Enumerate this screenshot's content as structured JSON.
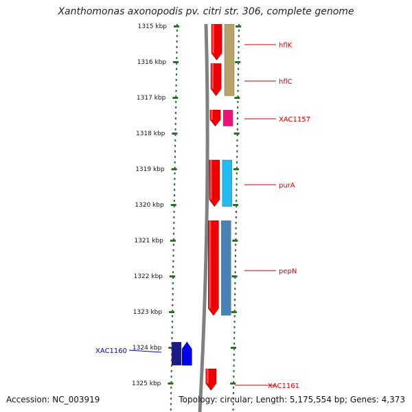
{
  "title": "Xanthomonas axonopodis pv. citri str. 306, complete genome",
  "accession_text": "Accession: NC_003919",
  "topology_text": "Topology: circular; Length: 5,175,554 bp; Genes: 4,373",
  "colors": {
    "ruler": "#1a7a1a",
    "label_red": "#cc0000",
    "label_blue": "#0000cc",
    "backbone": "#808080"
  },
  "ruler_labels": [
    "1315 kbp",
    "1316 kbp",
    "1317 kbp",
    "1318 kbp",
    "1319 kbp",
    "1320 kbp",
    "1321 kbp",
    "1322 kbp",
    "1323 kbp",
    "1324 kbp",
    "1325 kbp"
  ],
  "genes": [
    {
      "name": "hflK",
      "strand": "minus",
      "color": "#ee0000",
      "start_kbp": 1314.95,
      "end_kbp": 1315.95
    },
    {
      "name": "hflC",
      "strand": "minus",
      "color": "#ee0000",
      "start_kbp": 1316.05,
      "end_kbp": 1316.95
    },
    {
      "name": "XAC1157",
      "strand": "minus",
      "color": "#ee0000",
      "start_kbp": 1317.35,
      "end_kbp": 1317.8
    },
    {
      "name": "purA",
      "strand": "minus",
      "color": "#ee0000",
      "start_kbp": 1318.75,
      "end_kbp": 1320.05
    },
    {
      "name": "pepN",
      "strand": "minus",
      "color": "#ee0000",
      "start_kbp": 1320.45,
      "end_kbp": 1323.1
    },
    {
      "name": "XAC1160",
      "strand": "plus",
      "color": "#0000ee",
      "start_kbp": 1323.85,
      "end_kbp": 1324.5
    },
    {
      "name": "XAC1161",
      "strand": "minus",
      "color": "#ee0000",
      "start_kbp": 1324.6,
      "end_kbp": 1325.2
    }
  ],
  "cds": [
    {
      "color": "#b5a36a",
      "start_kbp": 1314.95,
      "end_kbp": 1316.95
    },
    {
      "color": "#ee1177",
      "start_kbp": 1317.35,
      "end_kbp": 1317.8
    },
    {
      "color": "#22bbee",
      "start_kbp": 1318.75,
      "end_kbp": 1320.05
    },
    {
      "color": "#4682b4",
      "start_kbp": 1320.45,
      "end_kbp": 1323.1
    },
    {
      "color": "#1a1a88",
      "start_kbp": 1323.85,
      "end_kbp": 1324.5
    }
  ]
}
